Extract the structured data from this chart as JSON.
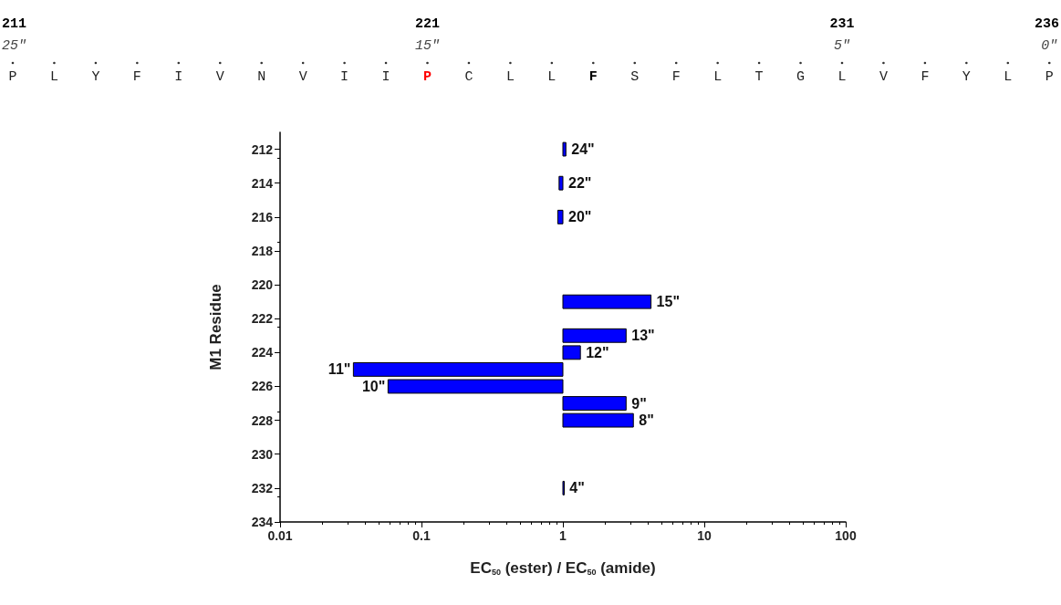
{
  "chart_data": {
    "type": "bar",
    "orientation": "horizontal",
    "xlabel": "EC$_{50}$ (ester) / EC$_{50}$ (amide)",
    "ylabel": "M1 Residue",
    "x": [
      212,
      214,
      216,
      221,
      223,
      224,
      225,
      226,
      227,
      228,
      232
    ],
    "base": [
      1,
      0.94,
      0.92,
      1,
      1,
      1,
      0.033,
      0.058,
      1,
      1,
      1
    ],
    "values": [
      0.05,
      0.06,
      0.08,
      3.2,
      1.8,
      0.33,
      0.967,
      0.942,
      1.8,
      2.15,
      0.02
    ],
    "color": "#0000ff",
    "log": "x",
    "xlim": [
      0.01,
      100
    ],
    "xticks": [
      0.01,
      0.1,
      1,
      10,
      100
    ],
    "ylim": [
      234,
      211
    ],
    "yticks": [
      212,
      214,
      216,
      218,
      220,
      222,
      224,
      226,
      228,
      230,
      232,
      234
    ],
    "grid": false,
    "annotations": [
      "211",
      "221",
      "231",
      "236",
      "25\"",
      "15\"",
      "5\"",
      "0\"",
      "P L Y F I V N V I I P C L L F S F L T G L V F Y L P",
      {
        "text": "24\"",
        "x": 1.05,
        "y": 212
      },
      {
        "text": "22\"",
        "x": 1,
        "y": 214
      },
      {
        "text": "20\"",
        "x": 1,
        "y": 216
      },
      {
        "text": "15\"",
        "x": 4.2,
        "y": 221
      },
      {
        "text": "13\"",
        "x": 2.8,
        "y": 223
      },
      {
        "text": "12\"",
        "x": 1.33,
        "y": 224
      },
      {
        "text": "11\"",
        "x": 0.033,
        "y": 225
      },
      {
        "text": "10\"",
        "x": 0.058,
        "y": 226
      },
      {
        "text": "9\"",
        "x": 2.8,
        "y": 227
      },
      {
        "text": "8\"",
        "x": 3.15,
        "y": 228
      },
      {
        "text": "4\"",
        "x": 1.02,
        "y": 232
      }
    ]
  }
}
